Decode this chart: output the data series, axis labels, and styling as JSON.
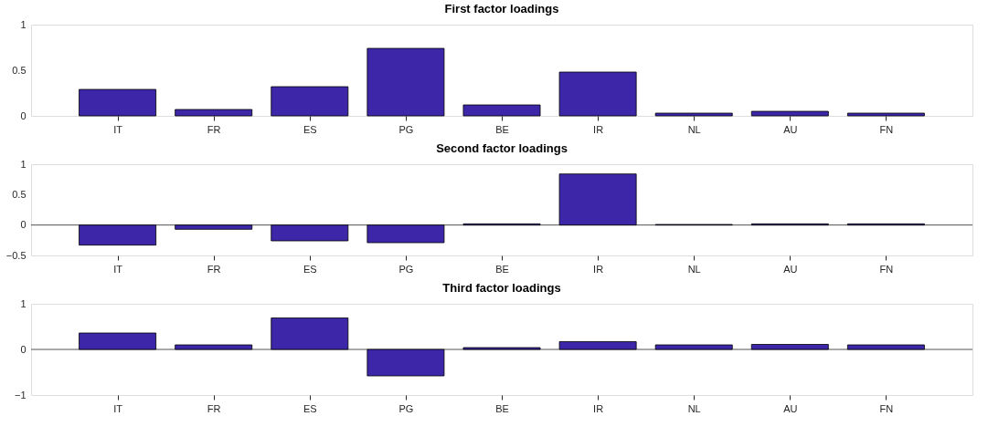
{
  "chart_data": [
    {
      "type": "bar",
      "title": "First factor loadings",
      "categories": [
        "IT",
        "FR",
        "ES",
        "PG",
        "BE",
        "IR",
        "NL",
        "AU",
        "FN"
      ],
      "values": [
        0.29,
        0.07,
        0.32,
        0.74,
        0.12,
        0.48,
        0.03,
        0.05,
        0.03
      ],
      "color": "#3d27a8",
      "ylim": [
        0,
        1
      ],
      "yticks": [
        0,
        0.5,
        1
      ]
    },
    {
      "type": "bar",
      "title": "Second factor loadings",
      "categories": [
        "IT",
        "FR",
        "ES",
        "PG",
        "BE",
        "IR",
        "NL",
        "AU",
        "FN"
      ],
      "values": [
        -0.33,
        -0.07,
        -0.26,
        -0.29,
        0.02,
        0.84,
        0.01,
        0.02,
        0.02
      ],
      "color": "#3d27a8",
      "ylim": [
        -0.5,
        1
      ],
      "yticks": [
        -0.5,
        0,
        0.5,
        1
      ],
      "ref_lines": [
        {
          "axis": "y",
          "value": 0
        }
      ]
    },
    {
      "type": "bar",
      "title": "Third factor loadings",
      "categories": [
        "IT",
        "FR",
        "ES",
        "PG",
        "BE",
        "IR",
        "NL",
        "AU",
        "FN"
      ],
      "values": [
        0.36,
        0.1,
        0.69,
        -0.58,
        0.04,
        0.17,
        0.1,
        0.11,
        0.1
      ],
      "color": "#3d27a8",
      "ylim": [
        -1,
        1
      ],
      "yticks": [
        -1,
        0,
        1
      ],
      "ref_lines": [
        {
          "axis": "y",
          "value": 0
        }
      ]
    }
  ]
}
